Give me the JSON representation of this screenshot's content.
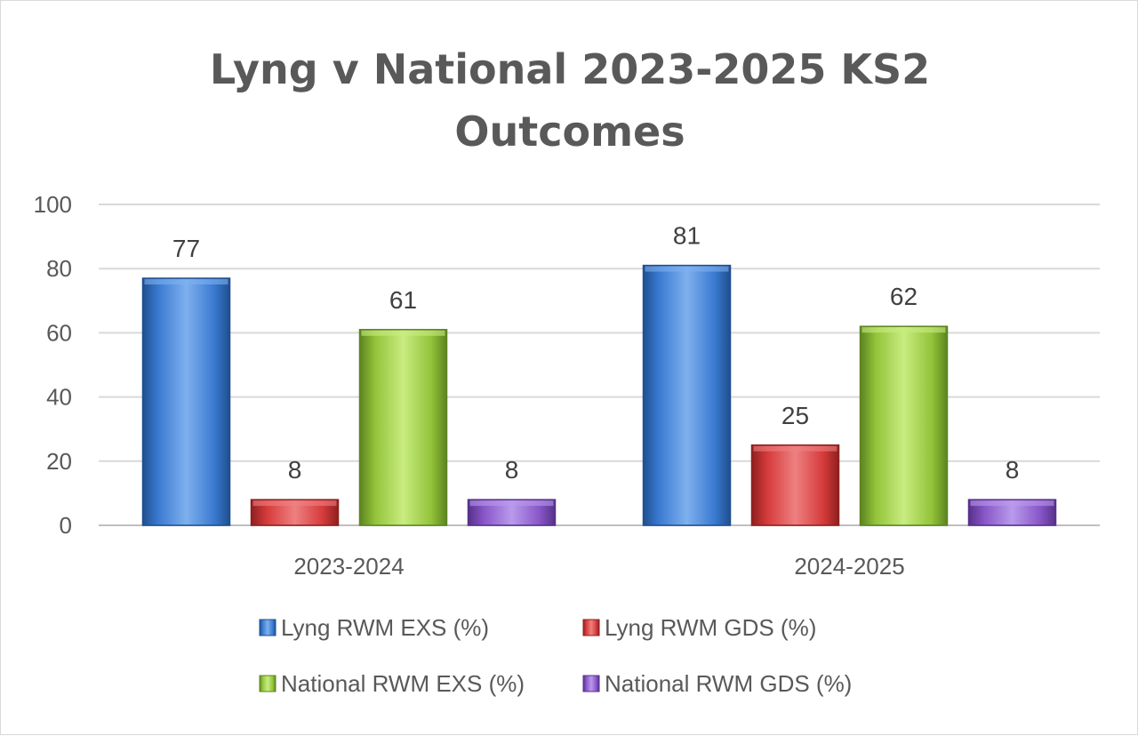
{
  "chart_data": {
    "type": "bar",
    "title_lines": [
      "Lyng v National 2023-2025 KS2",
      "Outcomes"
    ],
    "categories": [
      "2023-2024",
      "2024-2025"
    ],
    "series": [
      {
        "name": "Lyng RWM EXS (%)",
        "values": [
          77,
          81
        ],
        "color": "#3a7ad1",
        "dark": "#1f4f8f",
        "light": "#7fb0ee"
      },
      {
        "name": "Lyng RWM GDS (%)",
        "values": [
          8,
          25
        ],
        "color": "#d63b3b",
        "dark": "#8f1f1f",
        "light": "#ee8080"
      },
      {
        "name": "National RWM EXS (%)",
        "values": [
          61,
          62
        ],
        "color": "#93c43a",
        "dark": "#5c8420",
        "light": "#c8ec80"
      },
      {
        "name": "National RWM GDS (%)",
        "values": [
          8,
          8
        ],
        "color": "#8856c8",
        "dark": "#56318a",
        "light": "#b99aec"
      }
    ],
    "yticks": [
      0,
      20,
      40,
      60,
      80,
      100
    ],
    "ylim": [
      0,
      100
    ],
    "grid": true,
    "legend_position": "bottom",
    "xlabel": "",
    "ylabel": ""
  }
}
